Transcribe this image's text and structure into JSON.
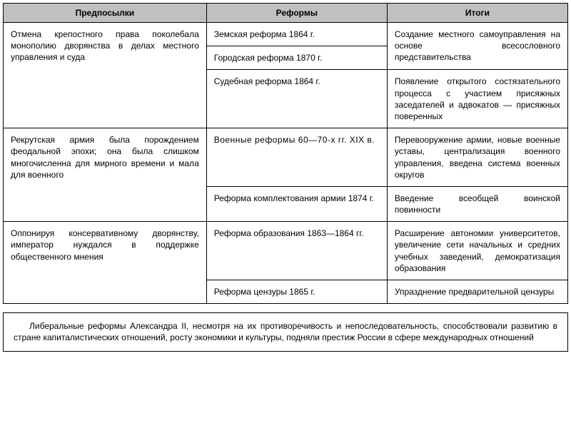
{
  "table": {
    "headers": [
      "Предпосылки",
      "Реформы",
      "Итоги"
    ],
    "columns": [
      "col1",
      "col2",
      "col3"
    ],
    "header_bg": "#c0c0c0",
    "border_color": "#000000",
    "font_size": 12,
    "rows": [
      {
        "pre": "Отмена крепостного права поколебала монополию дворянства в делах местного управления и суда",
        "pre_rowspan": 3,
        "ref": "Земская реформа 1864 г.",
        "res": "Создание местного самоуправления на основе всесословного представительства",
        "res_rowspan": 2
      },
      {
        "ref": "Городская реформа 1870 г."
      },
      {
        "ref": "Судебная реформа 1864 г.",
        "res": "Появление открытого состязательного процесса с участием присяжных заседателей и адвокатов — присяжных поверенных"
      },
      {
        "pre": "Рекрутская армия была порождением феодальной эпохи; она была слишком многочисленна для мирного времени и мала для военного",
        "pre_rowspan": 2,
        "ref": "Военные реформы 60—70-х гг. XIX в.",
        "res": "Перевооружение армии, новые военные уставы, централизация военного управления, введена система военных округов"
      },
      {
        "ref": "Реформа комплектования армии 1874 г.",
        "res": "Введение всеобщей воинской повинности"
      },
      {
        "pre": "Оппонируя консервативному дворянству, император нуждался в поддержке общественного мнения",
        "pre_rowspan": 2,
        "ref": "Реформа образования 1863—1864 гг.",
        "res": "Расширение автономии университетов, увеличение сети начальных и средних учебных заведений, демократизация образования"
      },
      {
        "ref": "Реформа цензуры 1865 г.",
        "res": "Упразднение предварительной цензуры"
      }
    ]
  },
  "summary": "Либеральные реформы Александра II, несмотря на их противоречивость и непоследовательность, способствовали развитию в стране капиталистических отношений, росту экономики и культуры, подняли престиж России в сфере международных отношений"
}
